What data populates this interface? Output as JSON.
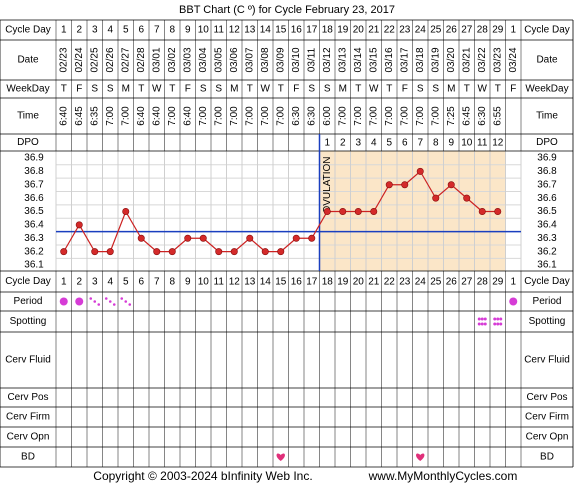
{
  "title": "BBT Chart (C º) for Cycle February 23, 2017",
  "footer": {
    "copyright": "Copyright © 2003-2024 bInfinity Web Inc.",
    "site": "www.MyMonthlyCycles.com"
  },
  "row_labels": {
    "cycle_day": "Cycle Day",
    "date": "Date",
    "weekday": "WeekDay",
    "time": "Time",
    "dpo": "DPO",
    "period": "Period",
    "spotting": "Spotting",
    "cerv_fluid": "Cerv Fluid",
    "cerv_pos": "Cerv Pos",
    "cerv_firm": "Cerv Firm",
    "cerv_opn": "Cerv Opn",
    "bd": "BD"
  },
  "ovulation_label": "OVULATION",
  "colors": {
    "grid": "#000000",
    "header_bg": "#e6e6e6",
    "follicular_bg": "#ffffff",
    "luteal_bg": "#fbe6c8",
    "line": "#cc2222",
    "point_fill": "#d42a2a",
    "coverline": "#1a3fbf",
    "ovulation_line": "#1a3fbf",
    "period_dot": "#d63cd6",
    "heart": "#e0307a"
  },
  "chart_data": {
    "type": "line",
    "title": "BBT Chart (C º) for Cycle February 23, 2017",
    "xlabel": "Cycle Day",
    "ylabel": "",
    "ylim": [
      36.1,
      36.9
    ],
    "yticks": [
      "36.9",
      "36.8",
      "36.7",
      "36.6",
      "36.5",
      "36.4",
      "36.3",
      "36.2",
      "36.1"
    ],
    "cycle_days": [
      "1",
      "2",
      "3",
      "4",
      "5",
      "6",
      "7",
      "8",
      "9",
      "10",
      "11",
      "12",
      "13",
      "14",
      "15",
      "16",
      "17",
      "18",
      "19",
      "20",
      "21",
      "22",
      "23",
      "24",
      "25",
      "26",
      "27",
      "28",
      "29",
      "1"
    ],
    "dates": [
      "02/23",
      "02/24",
      "02/25",
      "02/26",
      "02/27",
      "02/28",
      "03/01",
      "03/02",
      "03/03",
      "03/04",
      "03/05",
      "03/06",
      "03/07",
      "03/08",
      "03/09",
      "03/10",
      "03/11",
      "03/12",
      "03/13",
      "03/14",
      "03/15",
      "03/16",
      "03/17",
      "03/18",
      "03/19",
      "03/20",
      "03/21",
      "03/22",
      "03/23",
      "03/24"
    ],
    "weekdays": [
      "T",
      "F",
      "S",
      "S",
      "M",
      "T",
      "W",
      "T",
      "F",
      "S",
      "S",
      "M",
      "T",
      "W",
      "T",
      "F",
      "S",
      "S",
      "M",
      "T",
      "W",
      "T",
      "F",
      "S",
      "S",
      "M",
      "T",
      "W",
      "T",
      "F"
    ],
    "times": [
      "6:40",
      "6:45",
      "6:35",
      "7:00",
      "7:00",
      "6:40",
      "6:40",
      "7:00",
      "6:40",
      "7:00",
      "7:00",
      "7:00",
      "7:00",
      "7:00",
      "7:00",
      "6:30",
      "6:30",
      "6:00",
      "7:00",
      "7:00",
      "7:00",
      "7:00",
      "7:00",
      "7:00",
      "7:00",
      "7:25",
      "6:45",
      "6:30",
      "6:55",
      ""
    ],
    "dpo": [
      "",
      "",
      "",
      "",
      "",
      "",
      "",
      "",
      "",
      "",
      "",
      "",
      "",
      "",
      "",
      "",
      "",
      "1",
      "2",
      "3",
      "4",
      "5",
      "6",
      "7",
      "8",
      "9",
      "10",
      "11",
      "12",
      ""
    ],
    "series": [
      {
        "values": [
          36.2,
          36.4,
          36.2,
          36.2,
          36.5,
          36.3,
          36.2,
          36.2,
          36.3,
          36.3,
          36.2,
          36.2,
          36.3,
          36.2,
          36.2,
          36.3,
          36.3,
          36.5,
          36.5,
          36.5,
          36.5,
          36.7,
          36.7,
          36.8,
          36.6,
          36.7,
          36.6,
          36.5,
          36.5,
          null
        ]
      }
    ],
    "coverline": 36.35,
    "ovulation_after_day": 17,
    "period": [
      "heavy",
      "heavy",
      "light",
      "light",
      "light",
      "",
      "",
      "",
      "",
      "",
      "",
      "",
      "",
      "",
      "",
      "",
      "",
      "",
      "",
      "",
      "",
      "",
      "",
      "",
      "",
      "",
      "",
      "",
      "",
      "heavy"
    ],
    "spotting_days": [
      28,
      29
    ],
    "bd_days": [
      15,
      24
    ],
    "grid": true
  }
}
